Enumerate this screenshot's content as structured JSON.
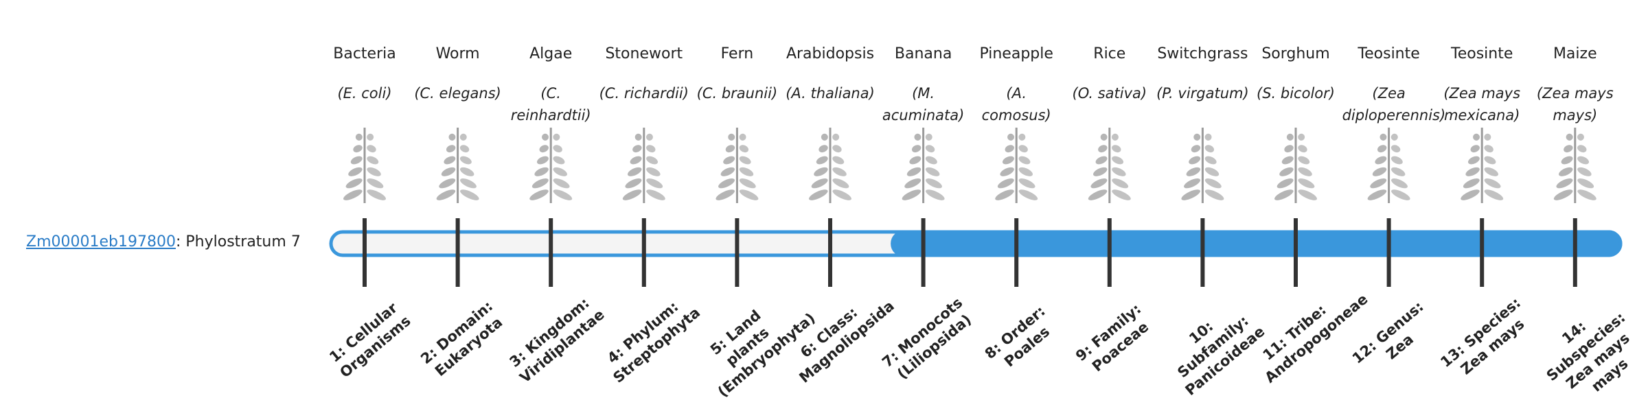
{
  "gene": {
    "id": "Zm00001eb197800",
    "prefix": ": Phylostratum",
    "stratum": 7
  },
  "columns": [
    {
      "name": "Bacteria",
      "species": "(E. coli)",
      "stratum": "1: Cellular Organisms"
    },
    {
      "name": "Worm",
      "species": "(C. elegans)",
      "stratum": "2: Domain: Eukaryota"
    },
    {
      "name": "Algae",
      "species": "(C. reinhardtii)",
      "stratum": "3: Kingdom: Viridiplantae"
    },
    {
      "name": "Stonewort",
      "species": "(C. richardii)",
      "stratum": "4: Phylum: Streptophyta"
    },
    {
      "name": "Fern",
      "species": "(C. braunii)",
      "stratum": "5: Land plants (Embryophyta)"
    },
    {
      "name": "Arabidopsis",
      "species": "(A. thaliana)",
      "stratum": "6: Class: Magnoliopsida"
    },
    {
      "name": "Banana",
      "species": "(M. acuminata)",
      "stratum": "7: Monocots (Liliopsida)"
    },
    {
      "name": "Pineapple",
      "species": "(A. comosus)",
      "stratum": "8: Order: Poales"
    },
    {
      "name": "Rice",
      "species": "(O. sativa)",
      "stratum": "9: Family: Poaceae"
    },
    {
      "name": "Switchgrass",
      "species": "(P. virgatum)",
      "stratum": "10: Subfamily: Panicoideae"
    },
    {
      "name": "Sorghum",
      "species": "(S. bicolor)",
      "stratum": "11: Tribe: Andropogoneae"
    },
    {
      "name": "Teosinte",
      "species": "(Zea diploperennis)",
      "stratum": "12: Genus: Zea"
    },
    {
      "name": "Teosinte",
      "species": "(Zea mays mexicana)",
      "stratum": "13: Species: Zea mays"
    },
    {
      "name": "Maize",
      "species": "(Zea mays mays)",
      "stratum": "14: Subspecies: Zea mays mays"
    }
  ]
}
